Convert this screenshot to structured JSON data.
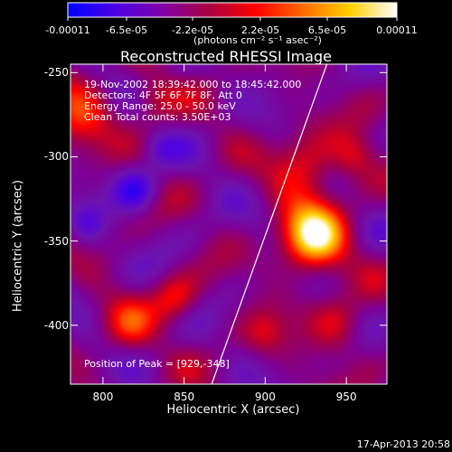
{
  "colorbar": {
    "ticks": [
      "-0.00011",
      "-6.5e-05",
      "-2.2e-05",
      "2.2e-05",
      "6.5e-05",
      "0.00011"
    ],
    "units_text": "(photons cm⁻² s⁻¹ asec⁻²)",
    "colormap": [
      "#0000ff",
      "#4d00e6",
      "#7f00a8",
      "#aa0040",
      "#ff0000",
      "#ff6a00",
      "#ffd000",
      "#ffffff"
    ]
  },
  "chart_data": {
    "type": "heatmap",
    "title": "Reconstructed RHESSI Image",
    "xlabel": "Heliocentric X (arcsec)",
    "ylabel": "Heliocentric Y (arcsec)",
    "xlim": [
      780,
      975
    ],
    "ylim": [
      -435,
      -245
    ],
    "xticks": [
      "800",
      "850",
      "900",
      "950"
    ],
    "yticks": [
      "-250",
      "-300",
      "-350",
      "-400"
    ],
    "peak": [
      929,
      -348
    ],
    "limb_x": [
      867,
      938
    ],
    "value_range": [
      -0.00011,
      0.00011
    ]
  },
  "info_lines": [
    "19-Nov-2002 18:39:42.000 to 18:45:42.000",
    "Detectors: 4F 5F 6F 7F 8F, Att 0",
    "Energy Range: 25.0 - 50.0 keV",
    "Clean     Total counts: 3.50E+03"
  ],
  "peak_label": "Position of Peak = [929,-348]",
  "timestamp": "17-Apr-2013 20:58"
}
